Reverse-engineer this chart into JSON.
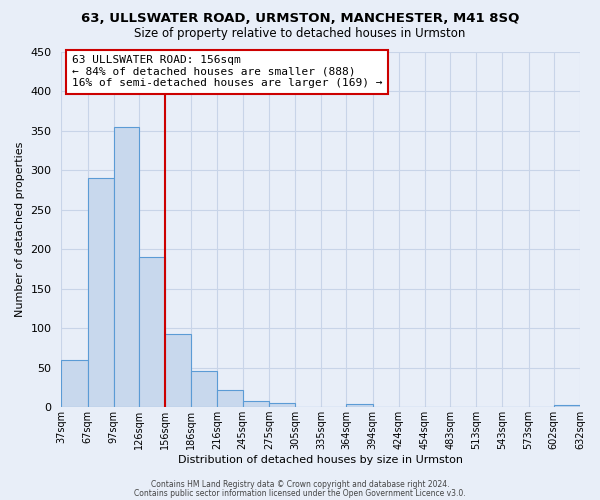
{
  "title": "63, ULLSWATER ROAD, URMSTON, MANCHESTER, M41 8SQ",
  "subtitle": "Size of property relative to detached houses in Urmston",
  "xlabel": "Distribution of detached houses by size in Urmston",
  "ylabel": "Number of detached properties",
  "bar_left_edges": [
    37,
    67,
    97,
    126,
    156,
    186,
    216,
    245,
    275,
    305,
    335,
    364,
    394,
    424,
    454,
    483,
    513,
    543,
    573,
    602
  ],
  "bar_widths": [
    30,
    30,
    29,
    30,
    30,
    30,
    29,
    30,
    30,
    30,
    29,
    30,
    30,
    30,
    29,
    30,
    30,
    30,
    29,
    30
  ],
  "bar_heights": [
    60,
    290,
    355,
    190,
    93,
    46,
    22,
    8,
    5,
    0,
    0,
    4,
    0,
    0,
    0,
    0,
    0,
    0,
    0,
    3
  ],
  "tick_labels": [
    "37sqm",
    "67sqm",
    "97sqm",
    "126sqm",
    "156sqm",
    "186sqm",
    "216sqm",
    "245sqm",
    "275sqm",
    "305sqm",
    "335sqm",
    "364sqm",
    "394sqm",
    "424sqm",
    "454sqm",
    "483sqm",
    "513sqm",
    "543sqm",
    "573sqm",
    "602sqm",
    "632sqm"
  ],
  "bar_fill_color": "#c8d8ed",
  "bar_edge_color": "#5b9bd5",
  "vline_x": 156,
  "vline_color": "#cc0000",
  "annotation_title": "63 ULLSWATER ROAD: 156sqm",
  "annotation_line1": "← 84% of detached houses are smaller (888)",
  "annotation_line2": "16% of semi-detached houses are larger (169) →",
  "annotation_box_facecolor": "#ffffff",
  "annotation_box_edgecolor": "#cc0000",
  "grid_color": "#c8d4e8",
  "background_color": "#e8eef8",
  "plot_bg_color": "#e8eef8",
  "ylim": [
    0,
    450
  ],
  "yticks": [
    0,
    50,
    100,
    150,
    200,
    250,
    300,
    350,
    400,
    450
  ],
  "footer1": "Contains HM Land Registry data © Crown copyright and database right 2024.",
  "footer2": "Contains public sector information licensed under the Open Government Licence v3.0."
}
